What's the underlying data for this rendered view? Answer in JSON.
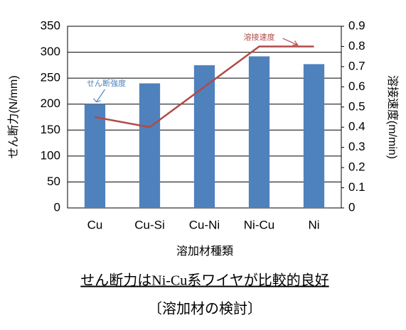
{
  "chart_data": {
    "type": "bar",
    "categories": [
      "Cu",
      "Cu-Si",
      "Cu-Ni",
      "Ni-Cu",
      "Ni"
    ],
    "series": [
      {
        "name": "せん断強度",
        "type": "bar",
        "color": "#4f81bd",
        "values": [
          200,
          240,
          275,
          292,
          277
        ]
      },
      {
        "name": "溶接速度",
        "type": "line",
        "axis": "y2",
        "color": "#b04a48",
        "values": [
          0.45,
          0.4,
          0.6,
          0.8,
          0.8
        ]
      }
    ],
    "ylabel": "せん断力(N/mm)",
    "y2label": "溶接速度(m/min)",
    "xlabel": "溶加材種類",
    "ylim": [
      0,
      350
    ],
    "yticks": [
      0,
      50,
      100,
      150,
      200,
      250,
      300,
      350
    ],
    "y2lim": [
      0,
      0.9
    ],
    "y2ticks": [
      0,
      0.1,
      0.2,
      0.3,
      0.4,
      0.5,
      0.6,
      0.7,
      0.8,
      0.9
    ],
    "grid": true
  },
  "caption": "せん断力はNi-Cu系ワイヤが比較的良好",
  "subcaption": "〔溶加材の検討〕"
}
